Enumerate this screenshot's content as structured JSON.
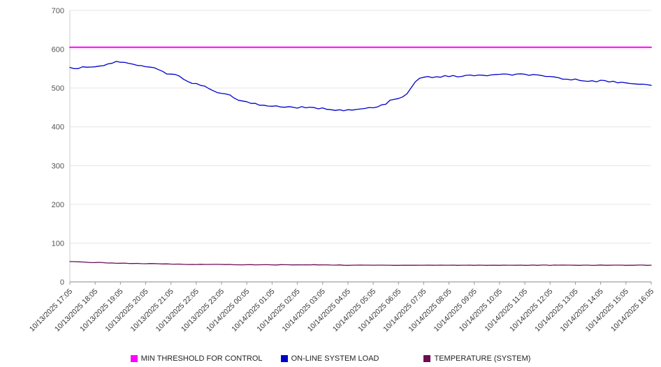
{
  "chart_data": {
    "type": "line",
    "title": "",
    "xlabel": "",
    "ylabel": "",
    "ylim": [
      0,
      700
    ],
    "yticks": [
      0,
      100,
      200,
      300,
      400,
      500,
      600,
      700
    ],
    "grid": true,
    "legend_position": "bottom",
    "x": [
      "10/13/2025 17:05",
      "10/13/2025 18:05",
      "10/13/2025 19:05",
      "10/13/2025 20:05",
      "10/13/2025 21:05",
      "10/13/2025 22:05",
      "10/13/2025 23:05",
      "10/14/2025 00:05",
      "10/14/2025 01:05",
      "10/14/2025 02:05",
      "10/14/2025 03:05",
      "10/14/2025 04:05",
      "10/14/2025 05:05",
      "10/14/2025 06:05",
      "10/14/2025 07:05",
      "10/14/2025 08:05",
      "10/14/2025 09:05",
      "10/14/2025 10:05",
      "10/14/2025 11:05",
      "10/14/2025 12:05",
      "10/14/2025 13:05",
      "10/14/2025 14:05",
      "10/14/2025 15:05",
      "10/14/2025 16:05"
    ],
    "series": [
      {
        "name": "MIN THRESHOLD FOR CONTROL",
        "color": "#ff00ff",
        "values": [
          605,
          605,
          605,
          605,
          605,
          605,
          605,
          605,
          605,
          605,
          605,
          605,
          605,
          605,
          605,
          605,
          605,
          605,
          605,
          605,
          605,
          605,
          605,
          605
        ]
      },
      {
        "name": "ON-LINE SYSTEM LOAD",
        "color": "#0000cc",
        "values": [
          551,
          556,
          568,
          556,
          537,
          510,
          486,
          463,
          453,
          450,
          447,
          442,
          449,
          472,
          528,
          530,
          532,
          534,
          535,
          528,
          521,
          518,
          514,
          507
        ]
      },
      {
        "name": "TEMPERATURE (SYSTEM)",
        "color": "#6e0b52",
        "values": [
          52,
          50,
          48,
          47,
          46,
          45,
          45,
          44,
          44,
          44,
          44,
          43,
          43,
          43,
          43,
          43,
          43,
          43,
          43,
          43,
          43,
          43,
          43,
          43
        ]
      }
    ]
  }
}
